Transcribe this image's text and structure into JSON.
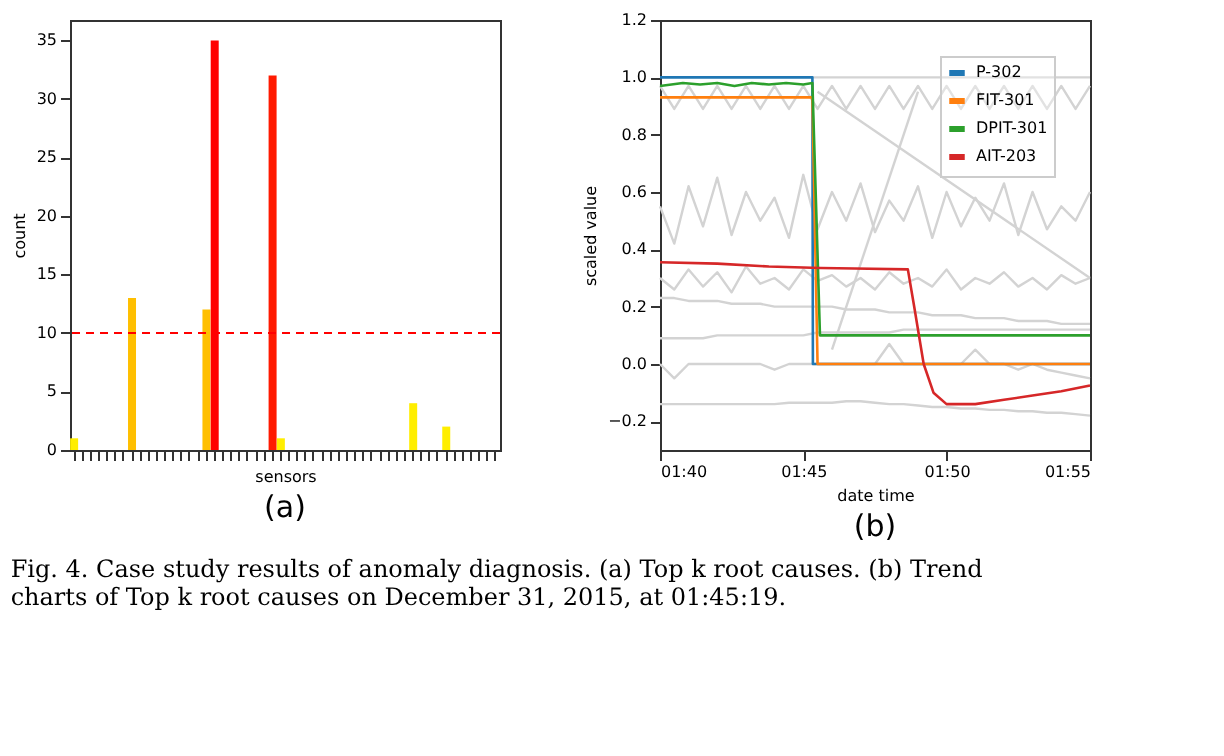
{
  "chart_data": [
    {
      "type": "bar",
      "xlabel": "sensors",
      "ylabel": "count",
      "annotations": [
        "(a)"
      ],
      "categories": [
        null,
        null,
        null,
        null,
        null,
        null,
        null,
        null,
        null,
        null,
        null,
        null,
        null,
        null,
        null,
        null,
        null,
        null,
        null,
        null,
        null,
        null,
        null,
        null,
        null,
        null,
        null,
        null,
        null,
        null,
        null,
        null,
        null,
        null,
        null,
        null,
        null,
        null,
        null,
        null,
        null,
        null,
        null,
        null,
        null,
        null,
        null,
        null,
        null,
        null,
        null,
        null
      ],
      "values": [
        1,
        0,
        0,
        0,
        0,
        0,
        0,
        13,
        0,
        0,
        0,
        0,
        0,
        0,
        0,
        0,
        12,
        35,
        0,
        0,
        0,
        0,
        0,
        0,
        32,
        1,
        0,
        0,
        0,
        0,
        0,
        0,
        0,
        0,
        0,
        0,
        0,
        0,
        0,
        0,
        0,
        4,
        0,
        0,
        0,
        2,
        0,
        0,
        0,
        0,
        0,
        0
      ],
      "colors": [
        "#ffee00",
        "#ffee00",
        "#ffee00",
        "#ffee00",
        "#ffee00",
        "#ffee00",
        "#ffee00",
        "#ffbf00",
        "#ffee00",
        "#ffee00",
        "#ffee00",
        "#ffee00",
        "#ffee00",
        "#ffee00",
        "#ffee00",
        "#ffee00",
        "#ffbf00",
        "#ff0000",
        "#ffee00",
        "#ffee00",
        "#ffee00",
        "#ffee00",
        "#ffee00",
        "#ffee00",
        "#ff1a00",
        "#ffee00",
        "#ffee00",
        "#ffee00",
        "#ffee00",
        "#ffee00",
        "#ffee00",
        "#ffee00",
        "#ffee00",
        "#ffee00",
        "#ffee00",
        "#ffee00",
        "#ffee00",
        "#ffee00",
        "#ffee00",
        "#ffee00",
        "#ffee00",
        "#ffee00",
        "#ffee00",
        "#ffee00",
        "#ffee00",
        "#ffee00",
        "#ffee00",
        "#ffee00",
        "#ffee00",
        "#ffee00",
        "#ffee00",
        "#ffee00"
      ],
      "ylim": [
        0,
        36.75
      ],
      "yticks": [
        0,
        5,
        10,
        15,
        20,
        25,
        30,
        35
      ],
      "grid": false,
      "legend": false,
      "tick_labels": "y",
      "ref_lines": [
        {
          "axis": "y",
          "value": 10,
          "color": "#ff0000",
          "line_style": "dashed"
        }
      ]
    },
    {
      "type": "line",
      "xlabel": "date time",
      "ylabel": "scaled value",
      "annotations": [
        "(b)",
        "Fig. 4.  Case study results of anomaly diagnosis. (a) Top k root causes. (b) Trend charts of Top k root causes on December 31, 2015, at 01:45:19."
      ],
      "x": [
        1.6667,
        1.675,
        1.6833,
        1.6917,
        1.7,
        1.7083,
        1.7167,
        1.725,
        1.7333,
        1.7417,
        1.75,
        1.7583,
        1.7667,
        1.775,
        1.7833,
        1.7917,
        1.8,
        1.8083,
        1.8167,
        1.825,
        1.8333,
        1.8417,
        1.85,
        1.8583,
        1.8667,
        1.875,
        1.8833,
        1.8917,
        1.9,
        1.9083,
        1.9167
      ],
      "xlim": [
        1.6667,
        1.9167
      ],
      "xticks": [
        {
          "value": 1.6667,
          "label": "01:40"
        },
        {
          "value": 1.75,
          "label": "01:45"
        },
        {
          "value": 1.8333,
          "label": "01:50"
        },
        {
          "value": 1.9167,
          "label": "01:55"
        }
      ],
      "ylim": [
        -0.3,
        1.2
      ],
      "yticks": [
        {
          "value": -0.2,
          "label": "−0.2"
        },
        {
          "value": 0,
          "label": "0.0"
        },
        {
          "value": 0.2,
          "label": "0.2"
        },
        {
          "value": 0.4,
          "label": "0.4"
        },
        {
          "value": 0.6,
          "label": "0.6"
        },
        {
          "value": 0.8,
          "label": "0.8"
        },
        {
          "value": 1,
          "label": "1.0"
        },
        {
          "value": 1.2,
          "label": "1.2"
        }
      ],
      "grid": false,
      "legend": "top right",
      "line_style": "solid",
      "marker": "none",
      "series": [
        {
          "color": "#d3d3d3",
          "values": [
            0.97,
            0.89,
            0.97,
            0.89,
            0.97,
            0.89,
            0.97,
            0.89,
            0.97,
            0.89,
            0.97,
            0.89,
            0.97,
            0.89,
            0.97,
            0.89,
            0.97,
            0.89,
            0.97,
            0.89,
            0.97,
            0.89,
            0.97,
            0.89,
            0.97,
            0.89,
            0.97,
            0.89,
            0.97,
            0.89,
            0.97
          ]
        },
        {
          "color": "#d3d3d3",
          "values": [
            0.55,
            0.42,
            0.62,
            0.48,
            0.65,
            0.45,
            0.6,
            0.5,
            0.58,
            0.44,
            0.66,
            0.47,
            0.6,
            0.5,
            0.63,
            0.46,
            0.57,
            0.5,
            0.62,
            0.44,
            0.6,
            0.48,
            0.58,
            0.5,
            0.63,
            0.45,
            0.6,
            0.47,
            0.55,
            0.5,
            0.6
          ]
        },
        {
          "color": "#d3d3d3",
          "values": [
            0.3,
            0.26,
            0.33,
            0.27,
            0.32,
            0.25,
            0.34,
            0.28,
            0.3,
            0.26,
            0.33,
            0.29,
            0.31,
            0.27,
            0.3,
            0.26,
            0.32,
            0.28,
            0.3,
            0.27,
            0.33,
            0.26,
            0.3,
            0.28,
            0.32,
            0.27,
            0.3,
            0.26,
            0.31,
            0.28,
            0.3
          ]
        },
        {
          "color": "#d3d3d3",
          "values": [
            0.23,
            0.23,
            0.22,
            0.22,
            0.22,
            0.21,
            0.21,
            0.21,
            0.2,
            0.2,
            0.2,
            0.2,
            0.2,
            0.19,
            0.19,
            0.19,
            0.18,
            0.18,
            0.18,
            0.17,
            0.17,
            0.17,
            0.16,
            0.16,
            0.16,
            0.15,
            0.15,
            0.15,
            0.14,
            0.14,
            0.14
          ]
        },
        {
          "color": "#d3d3d3",
          "values": [
            0.09,
            0.09,
            0.09,
            0.09,
            0.1,
            0.1,
            0.1,
            0.1,
            0.1,
            0.1,
            0.1,
            0.11,
            0.11,
            0.11,
            0.11,
            0.11,
            0.11,
            0.12,
            0.12,
            0.12,
            0.12,
            0.12,
            0.12,
            0.12,
            0.12,
            0.12,
            0.12,
            0.12,
            0.12,
            0.12,
            0.12
          ]
        },
        {
          "color": "#d3d3d3",
          "values": [
            0,
            -0.05,
            0,
            0,
            0,
            0,
            0,
            0,
            -0.02,
            0,
            0,
            0,
            0,
            0,
            0,
            0,
            0.07,
            0,
            0,
            0,
            0,
            0,
            0.05,
            0,
            0,
            -0.02,
            0,
            -0.02,
            -0.03,
            -0.04,
            -0.05
          ]
        },
        {
          "color": "#d3d3d3",
          "values": [
            -0.14,
            -0.14,
            -0.14,
            -0.14,
            -0.14,
            -0.14,
            -0.14,
            -0.14,
            -0.14,
            -0.135,
            -0.135,
            -0.135,
            -0.135,
            -0.13,
            -0.13,
            -0.135,
            -0.14,
            -0.14,
            -0.145,
            -0.15,
            -0.15,
            -0.155,
            -0.155,
            -0.16,
            -0.16,
            -0.165,
            -0.165,
            -0.17,
            -0.17,
            -0.175,
            -0.18
          ]
        },
        {
          "color": "#d3d3d3",
          "x": [
            1.7556,
            1.9167
          ],
          "values": [
            1.0,
            1.0
          ]
        },
        {
          "color": "#d3d3d3",
          "x": [
            1.7583,
            1.9167
          ],
          "values": [
            0.95,
            0.3
          ]
        },
        {
          "color": "#d3d3d3",
          "x": [
            1.7667,
            1.8167
          ],
          "values": [
            0.05,
            0.95
          ]
        },
        {
          "name": "P-302",
          "color": "#1f77b4",
          "x": [
            1.6667,
            1.7553,
            1.7556,
            1.9167
          ],
          "values": [
            1.0,
            1.0,
            0.0,
            0.0
          ]
        },
        {
          "name": "FIT-301",
          "color": "#ff7f0e",
          "x": [
            1.6667,
            1.7553,
            1.7583,
            1.9167
          ],
          "values": [
            0.93,
            0.93,
            0.0,
            0.0
          ]
        },
        {
          "name": "DPIT-301",
          "color": "#2ca02c",
          "x": [
            1.6667,
            1.68,
            1.69,
            1.7,
            1.71,
            1.72,
            1.73,
            1.74,
            1.75,
            1.7553,
            1.7597,
            1.9167
          ],
          "values": [
            0.97,
            0.98,
            0.975,
            0.98,
            0.97,
            0.98,
            0.975,
            0.98,
            0.975,
            0.98,
            0.1,
            0.1
          ]
        },
        {
          "name": "AIT-203",
          "color": "#d62728",
          "x": [
            1.6667,
            1.7,
            1.73,
            1.76,
            1.78,
            1.8108,
            1.8145,
            1.82,
            1.8257,
            1.8333,
            1.85,
            1.8667,
            1.8833,
            1.9,
            1.9167
          ],
          "values": [
            0.355,
            0.35,
            0.34,
            0.335,
            0.333,
            0.33,
            0.2,
            0.0,
            -0.1,
            -0.14,
            -0.14,
            -0.125,
            -0.11,
            -0.095,
            -0.075
          ]
        }
      ]
    }
  ]
}
